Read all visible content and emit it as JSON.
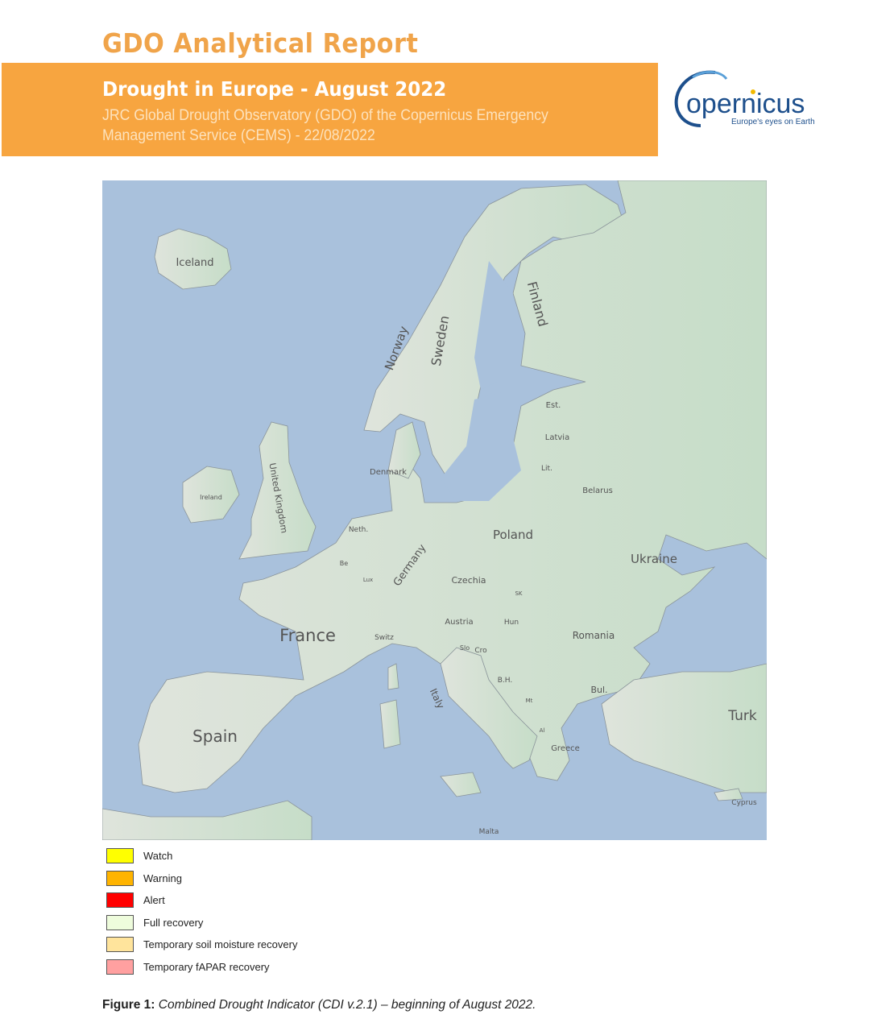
{
  "header": {
    "report_title": "GDO Analytical Report",
    "headline": "Drought in Europe - August 2022",
    "subtitle_line1": "JRC Global Drought Observatory (GDO) of the Copernicus Emergency",
    "subtitle_line2": "Management Service (CEMS) - 22/08/2022",
    "brand_color": "#f7a540"
  },
  "logo": {
    "name": "opernicus",
    "tagline": "Europe's eyes on Earth",
    "initial": "C"
  },
  "map": {
    "labels": [
      "Iceland",
      "Norway",
      "Sweden",
      "Finland",
      "Est.",
      "Latvia",
      "Lit.",
      "Belarus",
      "Denmark",
      "Ireland",
      "United Kingdom",
      "Neth.",
      "Be",
      "Lux",
      "Germany",
      "Poland",
      "Ukraine",
      "Czechia",
      "France",
      "Switz",
      "Austria",
      "Slo",
      "Cro",
      "Hun",
      "Romania",
      "B.H.",
      "Bul.",
      "Spain",
      "Italy",
      "Mt",
      "Al",
      "Greece",
      "Turk",
      "Cyprus",
      "Malta",
      "SK"
    ]
  },
  "legend": [
    {
      "label": "Watch",
      "color": "#ffff00"
    },
    {
      "label": "Warning",
      "color": "#ffb400"
    },
    {
      "label": "Alert",
      "color": "#ff0000"
    },
    {
      "label": "Full recovery",
      "color": "#eefcdc"
    },
    {
      "label": "Temporary soil moisture recovery",
      "color": "#ffe49c"
    },
    {
      "label": "Temporary fAPAR recovery",
      "color": "#ffa0a0"
    }
  ],
  "caption": {
    "prefix": "Figure 1:",
    "text": " Combined Drought Indicator (CDI v.2.1) – beginning of August 2022."
  }
}
